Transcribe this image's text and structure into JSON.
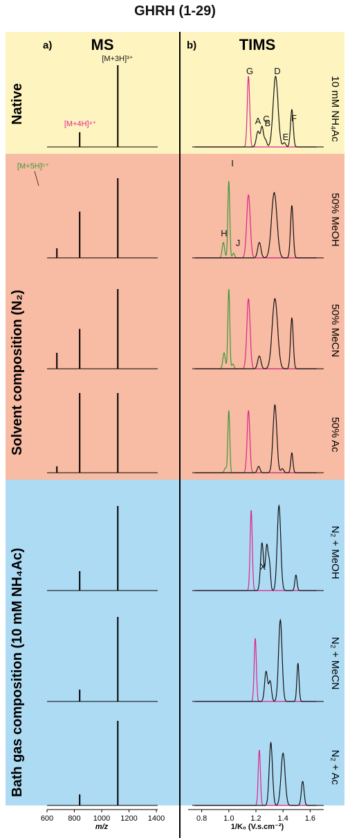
{
  "figure_title": "GHRH (1-29)",
  "panels": {
    "a": {
      "letter": "a)",
      "title": "MS",
      "xlabel": "m/z",
      "xticks": [
        "600",
        "800",
        "1000",
        "1200",
        "1400"
      ]
    },
    "b": {
      "letter": "b)",
      "title": "TIMS",
      "xlabel": "1/K₀ (V.s.cm⁻²)",
      "xticks": [
        "0.8",
        "1.0",
        "1.2",
        "1.4",
        "1.6"
      ]
    }
  },
  "sections": {
    "native": "Native",
    "solvent": "Solvent composition (N₂)",
    "bath": "Bath gas composition (10 mM NH₄Ac)"
  },
  "row_labels": [
    "10 mM NH₄Ac",
    "50% MeOH",
    "50% MeCN",
    "50% Ac",
    "N₂ + MeOH",
    "N₂ + MeCN",
    "N₂ + Ac"
  ],
  "colors": {
    "native_bg": "#fdf4bf",
    "solvent_bg": "#f8bba4",
    "bath_bg": "#aedbf4",
    "charge_4": "#e0218a",
    "charge_5": "#3a9a3a",
    "charge_3": "#111111"
  },
  "ms_labels": {
    "m3": "[M+3H]³⁺",
    "m4": "[M+4H]⁴⁺",
    "m5": "[M+5H]⁵⁺"
  },
  "tims_labels": {
    "A": "A",
    "B": "B",
    "C": "C",
    "D": "D",
    "E": "E",
    "F": "F",
    "G": "G",
    "H": "H",
    "I": "I",
    "J": "J",
    "X": "X"
  },
  "chart_data": [
    {
      "type": "bar",
      "title": "MS",
      "xlabel": "m/z",
      "xlim": [
        600,
        1400
      ],
      "rows": [
        {
          "label": "10 mM NH₄Ac",
          "peaks": [
            {
              "mz": 839,
              "rel": 0.18
            },
            {
              "mz": 1118,
              "rel": 1.0
            }
          ]
        },
        {
          "label": "50% MeOH",
          "peaks": [
            {
              "mz": 672,
              "rel": 0.12
            },
            {
              "mz": 839,
              "rel": 0.58
            },
            {
              "mz": 1118,
              "rel": 1.0
            }
          ]
        },
        {
          "label": "50% MeCN",
          "peaks": [
            {
              "mz": 672,
              "rel": 0.2
            },
            {
              "mz": 839,
              "rel": 0.5
            },
            {
              "mz": 1118,
              "rel": 1.0
            }
          ]
        },
        {
          "label": "50% Ac",
          "peaks": [
            {
              "mz": 672,
              "rel": 0.08
            },
            {
              "mz": 839,
              "rel": 1.0
            },
            {
              "mz": 1118,
              "rel": 1.0
            }
          ]
        },
        {
          "label": "N₂ + MeOH",
          "peaks": [
            {
              "mz": 839,
              "rel": 0.23
            },
            {
              "mz": 1118,
              "rel": 1.0
            }
          ]
        },
        {
          "label": "N₂ + MeCN",
          "peaks": [
            {
              "mz": 839,
              "rel": 0.14
            },
            {
              "mz": 1118,
              "rel": 1.0
            }
          ]
        },
        {
          "label": "N₂ + Ac",
          "peaks": [
            {
              "mz": 839,
              "rel": 0.13
            },
            {
              "mz": 1118,
              "rel": 1.0
            }
          ]
        }
      ]
    },
    {
      "type": "line",
      "title": "TIMS",
      "xlabel": "1/K₀ (V.s.cm⁻²)",
      "xlim": [
        0.7,
        1.7
      ],
      "rows": [
        {
          "label": "10 mM NH₄Ac",
          "series": [
            {
              "charge": "4+",
              "peaks": [
                [
                  1.145,
                  1.0,
                  0.009
                ]
              ]
            },
            {
              "charge": "3+",
              "peaks": [
                [
                  1.215,
                  0.22,
                  0.012
                ],
                [
                  1.245,
                  0.28,
                  0.01
                ],
                [
                  1.27,
                  0.1,
                  0.01
                ],
                [
                  1.345,
                  1.0,
                  0.018
                ],
                [
                  1.41,
                  0.06,
                  0.01
                ],
                [
                  1.465,
                  0.53,
                  0.01
                ]
              ]
            }
          ]
        },
        {
          "label": "50% MeOH",
          "series": [
            {
              "charge": "5+",
              "peaks": [
                [
                  0.96,
                  0.2,
                  0.009
                ],
                [
                  1.0,
                  1.0,
                  0.007
                ],
                [
                  1.035,
                  0.06,
                  0.008
                ]
              ]
            },
            {
              "charge": "4+",
              "peaks": [
                [
                  1.145,
                  0.82,
                  0.013
                ]
              ]
            },
            {
              "charge": "3+",
              "peaks": [
                [
                  1.225,
                  0.2,
                  0.012
                ],
                [
                  1.335,
                  0.85,
                  0.02
                ],
                [
                  1.465,
                  0.68,
                  0.01
                ]
              ]
            }
          ]
        },
        {
          "label": "50% MeCN",
          "series": [
            {
              "charge": "5+",
              "peaks": [
                [
                  0.965,
                  0.2,
                  0.009
                ],
                [
                  1.0,
                  1.0,
                  0.007
                ],
                [
                  1.03,
                  0.06,
                  0.008
                ]
              ]
            },
            {
              "charge": "4+",
              "peaks": [
                [
                  1.145,
                  0.88,
                  0.012
                ]
              ]
            },
            {
              "charge": "3+",
              "peaks": [
                [
                  1.225,
                  0.16,
                  0.012
                ],
                [
                  1.34,
                  0.88,
                  0.02
                ],
                [
                  1.465,
                  0.64,
                  0.01
                ]
              ]
            }
          ]
        },
        {
          "label": "50% Ac",
          "series": [
            {
              "charge": "5+",
              "peaks": [
                [
                  0.975,
                  0.06,
                  0.008
                ],
                [
                  1.0,
                  0.78,
                  0.007
                ]
              ]
            },
            {
              "charge": "4+",
              "peaks": [
                [
                  1.145,
                  0.78,
                  0.01
                ]
              ]
            },
            {
              "charge": "3+",
              "peaks": [
                [
                  1.22,
                  0.08,
                  0.01
                ],
                [
                  1.34,
                  0.85,
                  0.014
                ],
                [
                  1.395,
                  0.05,
                  0.01
                ],
                [
                  1.465,
                  0.25,
                  0.008
                ]
              ]
            }
          ]
        },
        {
          "label": "N₂ + MeOH",
          "series": [
            {
              "charge": "4+",
              "peaks": [
                [
                  1.165,
                  0.93,
                  0.008
                ]
              ]
            },
            {
              "charge": "3+",
              "peaks": [
                [
                  1.245,
                  0.55,
                  0.011
                ],
                [
                  1.28,
                  0.52,
                  0.01
                ],
                [
                  1.3,
                  0.28,
                  0.008
                ],
                [
                  1.37,
                  0.98,
                  0.013
                ],
                [
                  1.495,
                  0.18,
                  0.008
                ]
              ]
            }
          ]
        },
        {
          "label": "N₂ + MeCN",
          "series": [
            {
              "charge": "4+",
              "peaks": [
                [
                  1.195,
                  0.76,
                  0.008
                ]
              ]
            },
            {
              "charge": "3+",
              "peaks": [
                [
                  1.275,
                  0.36,
                  0.011
                ],
                [
                  1.305,
                  0.24,
                  0.01
                ],
                [
                  1.38,
                  0.98,
                  0.013
                ],
                [
                  1.51,
                  0.46,
                  0.008
                ]
              ]
            }
          ]
        },
        {
          "label": "N₂ + Ac",
          "series": [
            {
              "charge": "4+",
              "peaks": [
                [
                  1.225,
                  0.69,
                  0.008
                ]
              ]
            },
            {
              "charge": "3+",
              "peaks": [
                [
                  1.31,
                  0.78,
                  0.012
                ],
                [
                  1.4,
                  0.65,
                  0.015
                ],
                [
                  1.545,
                  0.3,
                  0.01
                ]
              ]
            }
          ]
        }
      ]
    }
  ]
}
